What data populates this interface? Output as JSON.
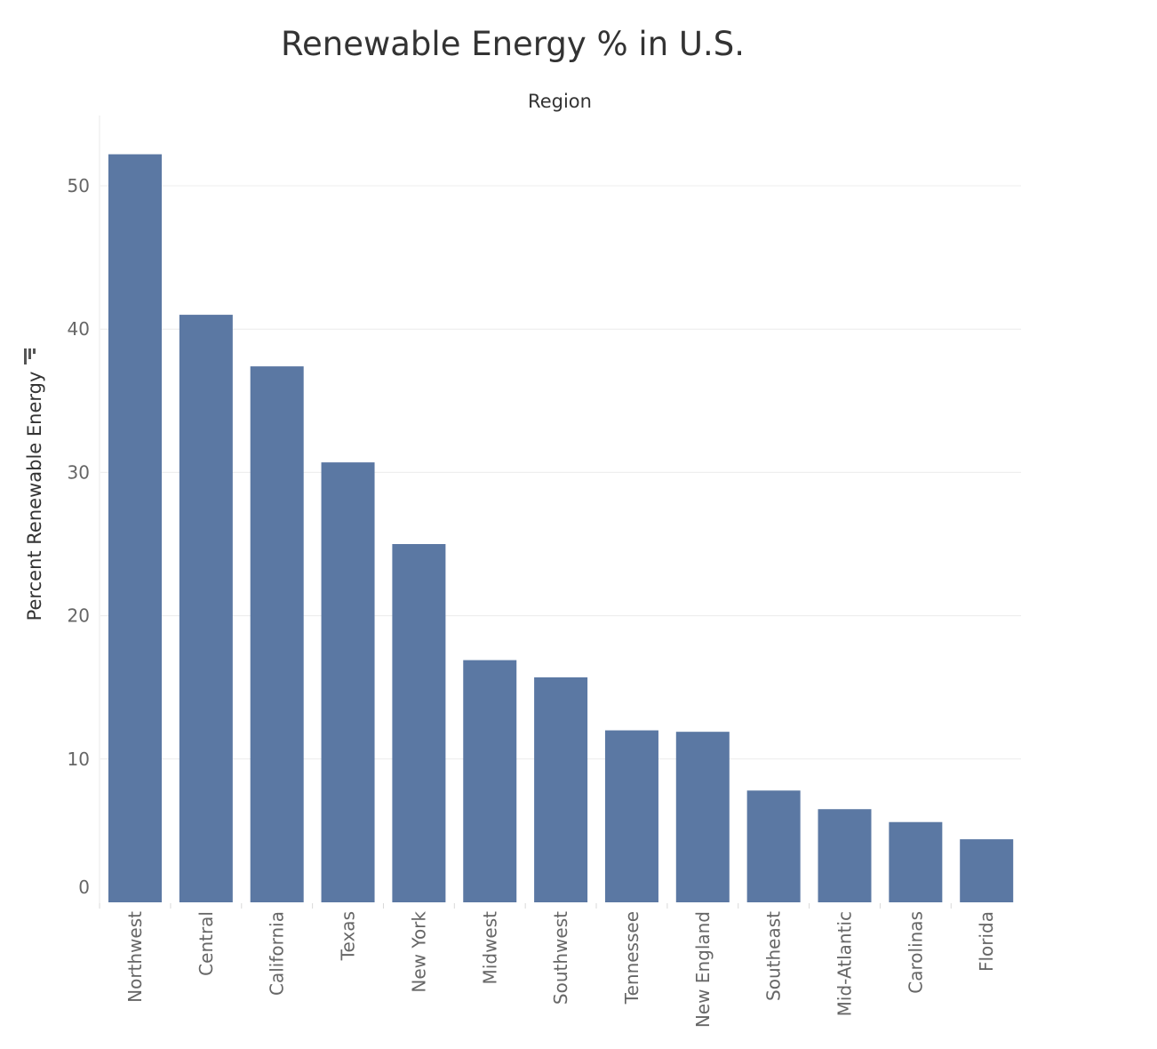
{
  "chart_data": {
    "type": "bar",
    "title": "Renewable Energy % in U.S.",
    "column_header": "Region",
    "xlabel": "",
    "ylabel": "Percent Renewable Energy",
    "categories": [
      "Northwest",
      "Central",
      "California",
      "Texas",
      "New York",
      "Midwest",
      "Southwest",
      "Tennessee",
      "New England",
      "Southeast",
      "Mid-Atlantic",
      "Carolinas",
      "Florida"
    ],
    "values": [
      52.2,
      41.0,
      37.4,
      30.7,
      25.0,
      16.9,
      15.7,
      12.0,
      11.9,
      7.8,
      6.5,
      5.6,
      4.4
    ],
    "ylim": [
      0,
      55
    ],
    "yticks": [
      0,
      10,
      20,
      30,
      40,
      50
    ],
    "grid": true,
    "legend": "none",
    "bar_color": "#5b78a3"
  },
  "icons": {
    "sort": "sort-descending-icon"
  }
}
